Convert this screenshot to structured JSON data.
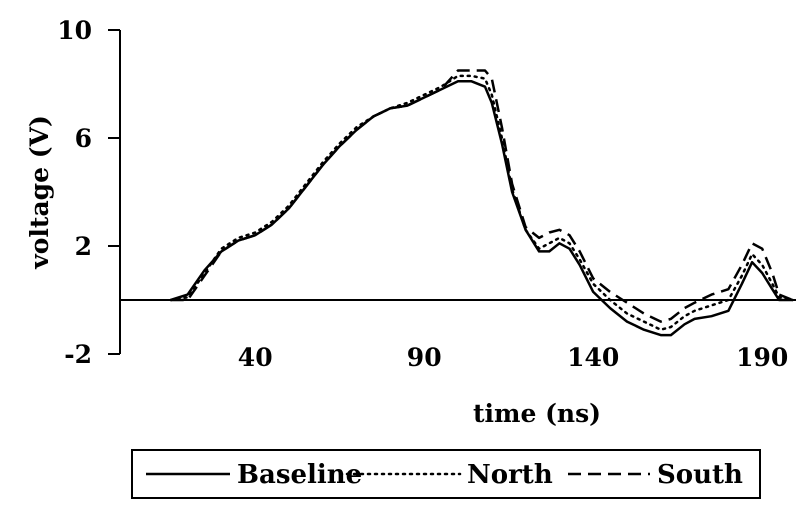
{
  "chart_data": {
    "type": "line",
    "xlabel": "time (ns)",
    "ylabel": "voltage (V)",
    "xlim": [
      0,
      200
    ],
    "ylim": [
      -2,
      10
    ],
    "x_ticks": [
      40,
      90,
      140,
      190
    ],
    "x_tick_labels": [
      "40",
      "90",
      "140",
      "190"
    ],
    "y_ticks": [
      -2,
      2,
      6,
      10
    ],
    "y_tick_labels": [
      "-2",
      "2",
      "6",
      "10"
    ],
    "zero_line": true,
    "grid": false,
    "legend_position": "bottom",
    "series": [
      {
        "name": "Baseline",
        "style": "solid",
        "x": [
          15,
          20,
          25,
          30,
          35,
          40,
          45,
          50,
          55,
          60,
          65,
          70,
          75,
          80,
          85,
          90,
          95,
          100,
          104,
          108,
          110,
          113,
          116,
          120,
          124,
          127,
          130,
          133,
          136,
          140,
          145,
          150,
          155,
          160,
          163,
          167,
          170,
          175,
          180,
          184,
          187,
          190,
          193,
          195,
          199
        ],
        "y": [
          0,
          0.2,
          1.1,
          1.8,
          2.2,
          2.4,
          2.8,
          3.4,
          4.2,
          5,
          5.7,
          6.3,
          6.8,
          7.1,
          7.2,
          7.5,
          7.8,
          8.1,
          8.1,
          7.9,
          7.3,
          5.8,
          4,
          2.6,
          1.8,
          1.8,
          2.1,
          1.9,
          1.3,
          0.3,
          -0.3,
          -0.8,
          -1.1,
          -1.3,
          -1.3,
          -0.9,
          -0.7,
          -0.6,
          -0.4,
          0.6,
          1.4,
          1,
          0.4,
          0,
          0
        ]
      },
      {
        "name": "North",
        "style": "dotted",
        "x": [
          15,
          20,
          25,
          30,
          35,
          40,
          45,
          50,
          55,
          60,
          65,
          70,
          75,
          80,
          85,
          90,
          95,
          100,
          104,
          108,
          110,
          113,
          116,
          120,
          124,
          127,
          130,
          133,
          136,
          140,
          145,
          150,
          155,
          160,
          163,
          167,
          170,
          175,
          180,
          184,
          187,
          190,
          193,
          195,
          199
        ],
        "y": [
          0,
          0.1,
          1,
          1.9,
          2.3,
          2.5,
          2.9,
          3.5,
          4.3,
          5.1,
          5.8,
          6.4,
          6.8,
          7.1,
          7.3,
          7.6,
          7.9,
          8.3,
          8.3,
          8.2,
          7.6,
          6,
          4.1,
          2.6,
          1.9,
          2.1,
          2.3,
          2.1,
          1.5,
          0.6,
          0,
          -0.5,
          -0.8,
          -1.1,
          -1,
          -0.6,
          -0.4,
          -0.2,
          0,
          0.9,
          1.7,
          1.3,
          0.6,
          0.1,
          0
        ]
      },
      {
        "name": "South",
        "style": "dashed",
        "x": [
          15,
          20,
          25,
          30,
          35,
          40,
          45,
          50,
          55,
          60,
          65,
          70,
          75,
          80,
          85,
          90,
          95,
          100,
          104,
          108,
          110,
          113,
          116,
          120,
          124,
          127,
          130,
          133,
          136,
          140,
          145,
          150,
          155,
          160,
          163,
          167,
          170,
          175,
          180,
          184,
          187,
          190,
          193,
          195,
          199
        ],
        "y": [
          0,
          0,
          0.9,
          1.8,
          2.2,
          2.4,
          2.8,
          3.4,
          4.2,
          5,
          5.7,
          6.3,
          6.8,
          7.1,
          7.2,
          7.5,
          7.8,
          8.5,
          8.5,
          8.5,
          8.2,
          6.4,
          4.3,
          2.7,
          2.3,
          2.5,
          2.6,
          2.4,
          1.8,
          0.8,
          0.3,
          -0.1,
          -0.5,
          -0.8,
          -0.7,
          -0.3,
          -0.1,
          0.2,
          0.4,
          1.3,
          2.1,
          1.9,
          1,
          0.2,
          0
        ]
      }
    ]
  }
}
